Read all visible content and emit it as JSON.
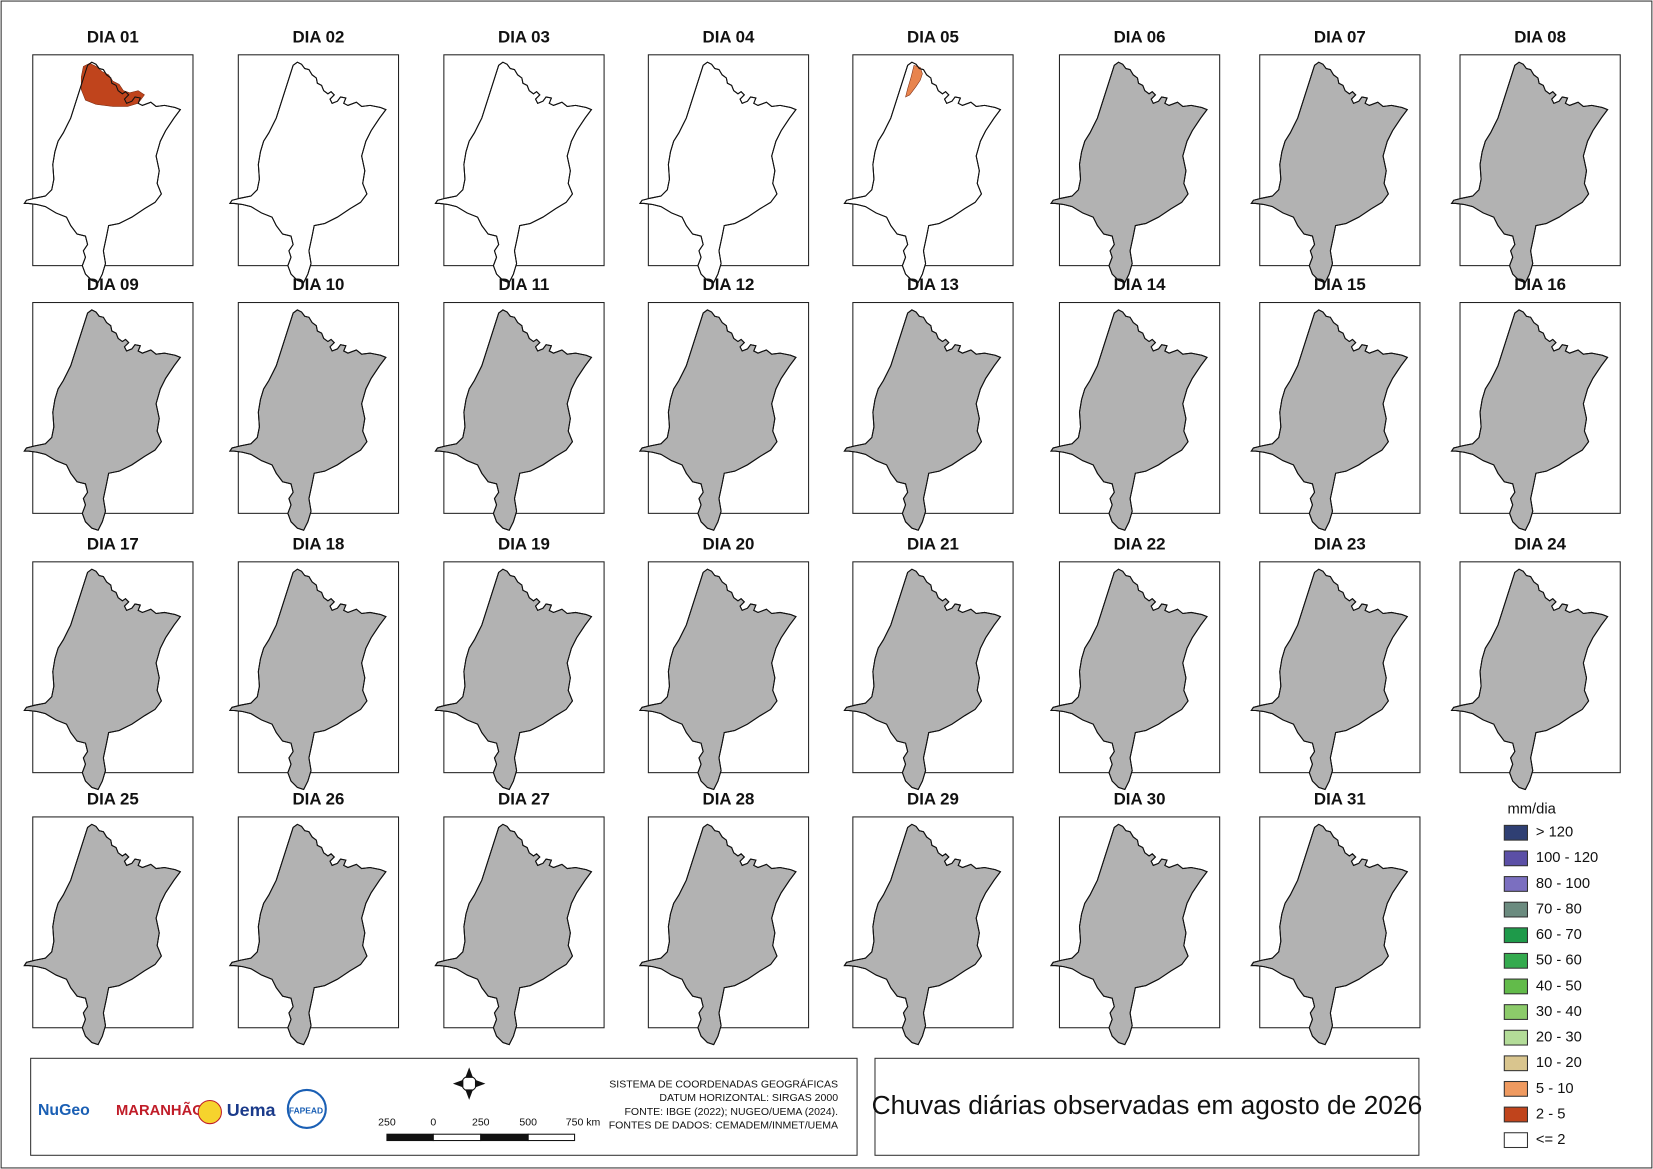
{
  "title": "Chuvas diárias observadas em agosto de 2026",
  "panels": [
    {
      "label": "DIA 01",
      "fill": "#ffffff",
      "rain": "#c0441c"
    },
    {
      "label": "DIA 02",
      "fill": "#ffffff"
    },
    {
      "label": "DIA 03",
      "fill": "#ffffff"
    },
    {
      "label": "DIA 04",
      "fill": "#ffffff"
    },
    {
      "label": "DIA 05",
      "fill": "#ffffff",
      "rain": "#e8844e"
    },
    {
      "label": "DIA 06",
      "fill": "#b2b2b2"
    },
    {
      "label": "DIA 07",
      "fill": "#b2b2b2"
    },
    {
      "label": "DIA 08",
      "fill": "#b2b2b2"
    },
    {
      "label": "DIA 09",
      "fill": "#b2b2b2"
    },
    {
      "label": "DIA 10",
      "fill": "#b2b2b2"
    },
    {
      "label": "DIA 11",
      "fill": "#b2b2b2"
    },
    {
      "label": "DIA 12",
      "fill": "#b2b2b2"
    },
    {
      "label": "DIA 13",
      "fill": "#b2b2b2"
    },
    {
      "label": "DIA 14",
      "fill": "#b2b2b2"
    },
    {
      "label": "DIA 15",
      "fill": "#b2b2b2"
    },
    {
      "label": "DIA 16",
      "fill": "#b2b2b2"
    },
    {
      "label": "DIA 17",
      "fill": "#b2b2b2"
    },
    {
      "label": "DIA 18",
      "fill": "#b2b2b2"
    },
    {
      "label": "DIA 19",
      "fill": "#b2b2b2"
    },
    {
      "label": "DIA 20",
      "fill": "#b2b2b2"
    },
    {
      "label": "DIA 21",
      "fill": "#b2b2b2"
    },
    {
      "label": "DIA 22",
      "fill": "#b2b2b2"
    },
    {
      "label": "DIA 23",
      "fill": "#b2b2b2"
    },
    {
      "label": "DIA 24",
      "fill": "#b2b2b2"
    },
    {
      "label": "DIA 25",
      "fill": "#b2b2b2"
    },
    {
      "label": "DIA 26",
      "fill": "#b2b2b2"
    },
    {
      "label": "DIA 27",
      "fill": "#b2b2b2"
    },
    {
      "label": "DIA 28",
      "fill": "#b2b2b2"
    },
    {
      "label": "DIA 29",
      "fill": "#b2b2b2"
    },
    {
      "label": "DIA 30",
      "fill": "#b2b2b2"
    },
    {
      "label": "DIA 31",
      "fill": "#b2b2b2"
    }
  ],
  "legend": {
    "title": "mm/dia",
    "items": [
      {
        "label": "> 120",
        "color": "#2f3f73"
      },
      {
        "label": "100 - 120",
        "color": "#5b4fa6"
      },
      {
        "label": "80 - 100",
        "color": "#7b6fc0"
      },
      {
        "label": "70 - 80",
        "color": "#6b8b7f"
      },
      {
        "label": "60 - 70",
        "color": "#1e9a4a"
      },
      {
        "label": "50 - 60",
        "color": "#34aa4e"
      },
      {
        "label": "40 - 50",
        "color": "#62bb4a"
      },
      {
        "label": "30 - 40",
        "color": "#8ccb6a"
      },
      {
        "label": "20 - 30",
        "color": "#b3dc98"
      },
      {
        "label": "10 - 20",
        "color": "#d9c58e"
      },
      {
        "label": "5 - 10",
        "color": "#ef9a60"
      },
      {
        "label": "2 - 5",
        "color": "#c0441c"
      },
      {
        "label": "<= 2",
        "color": "#ffffff"
      }
    ]
  },
  "metadata": [
    "SISTEMA DE COORDENADAS GEOGRÁFICAS",
    "DATUM HORIZONTAL: SIRGAS 2000",
    "FONTE: IBGE (2022); NUGEO/UEMA (2024).",
    "FONTES DE DADOS: CEMADEM/INMET/UEMA"
  ],
  "scale_labels": [
    "250",
    "0",
    "250",
    "500",
    "750 km"
  ],
  "logos": [
    "NuGeo",
    "MARANHÃO",
    "Uema",
    "FAPEAD"
  ]
}
